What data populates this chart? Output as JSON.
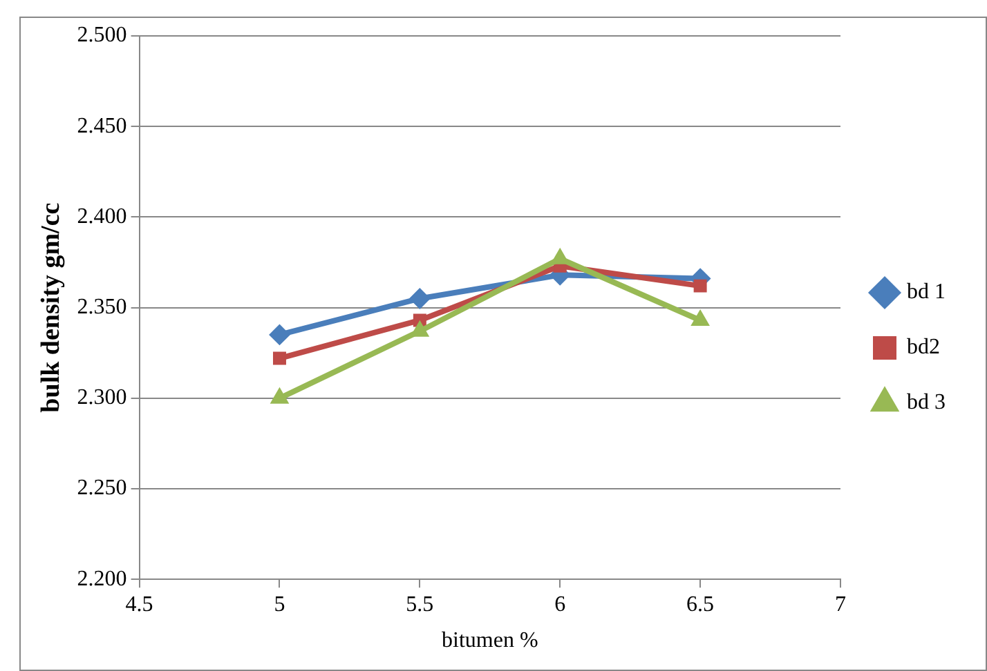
{
  "chart_data": {
    "type": "line",
    "xlabel": "bitumen %",
    "ylabel": "bulk density gm/cc",
    "x": [
      5,
      5.5,
      6,
      6.5
    ],
    "xlim": [
      4.5,
      7
    ],
    "xticks": [
      4.5,
      5,
      5.5,
      6,
      6.5,
      7
    ],
    "ylim": [
      2.2,
      2.5
    ],
    "yticks": [
      {
        "value": 2.2,
        "label": "2.200"
      },
      {
        "value": 2.25,
        "label": "2.250"
      },
      {
        "value": 2.3,
        "label": "2.300"
      },
      {
        "value": 2.35,
        "label": "2.350"
      },
      {
        "value": 2.4,
        "label": "2.400"
      },
      {
        "value": 2.45,
        "label": "2.450"
      },
      {
        "value": 2.5,
        "label": "2.500"
      }
    ],
    "grid": "y",
    "legend": "right",
    "series": [
      {
        "name": "bd 1",
        "color": "#4a7ebb",
        "marker": "diamond",
        "values": [
          2.335,
          2.355,
          2.368,
          2.366
        ]
      },
      {
        "name": "bd2",
        "color": "#be4b48",
        "marker": "square",
        "values": [
          2.322,
          2.343,
          2.373,
          2.362
        ]
      },
      {
        "name": "bd 3",
        "color": "#98b954",
        "marker": "triangle",
        "values": [
          2.3,
          2.337,
          2.377,
          2.343
        ]
      }
    ]
  }
}
